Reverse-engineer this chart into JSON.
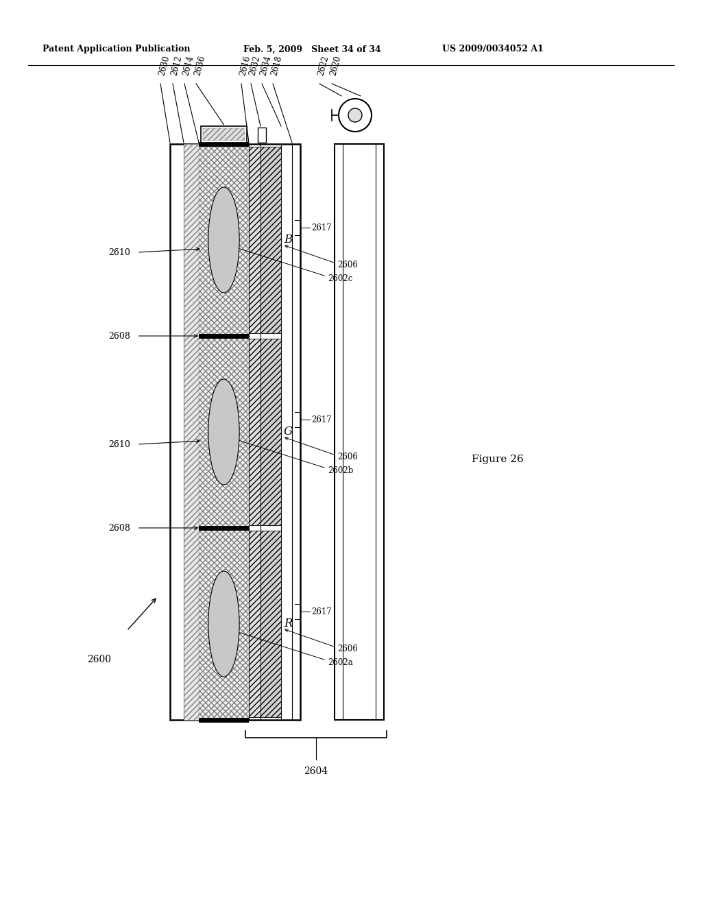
{
  "bg_color": "#ffffff",
  "header_left": "Patent Application Publication",
  "header_mid": "Feb. 5, 2009   Sheet 34 of 34",
  "header_right": "US 2009/0034052 A1",
  "figure_label": "Figure 26",
  "top_labels": [
    "2630",
    "2612",
    "2614",
    "2636",
    "2616",
    "2632",
    "2634",
    "2618",
    "2622",
    "2620"
  ],
  "cell_labels": [
    "B",
    "G",
    "R"
  ],
  "bottom_label": "2604",
  "main_ref": "2600"
}
